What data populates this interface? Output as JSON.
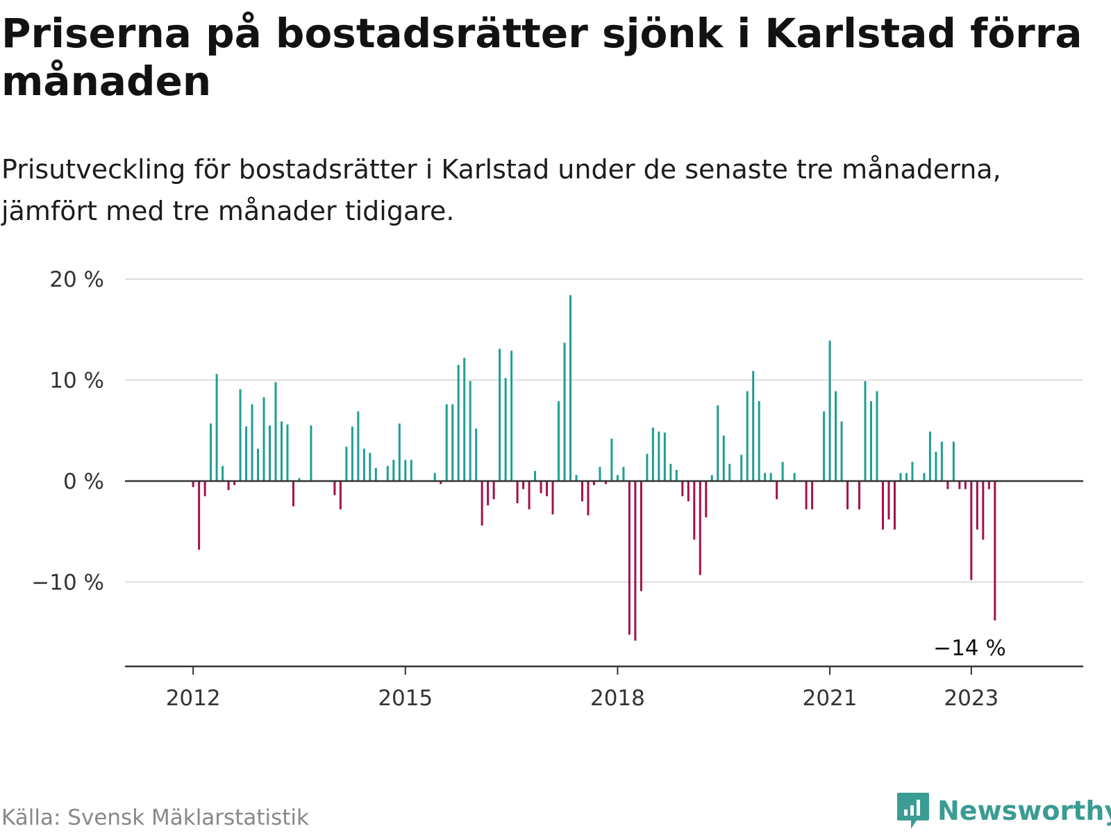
{
  "title": "Priserna på bostadsrätter sjönk i Karlstad förra månaden",
  "subtitle": "Prisutveckling för bostadsrätter i Karlstad under de senaste tre månaderna, jämfört med tre månader tidigare.",
  "source": "Källa: Svensk Mäklarstatistik",
  "brand": "Newsworthy",
  "colors": {
    "positive": "#1f9e94",
    "negative": "#a3114a",
    "brand": "#3a9c93",
    "grid": "#dddddd",
    "axis": "#333333"
  },
  "chart_data": {
    "type": "bar",
    "x_unit": "month",
    "x_start": "2011-08",
    "ylim": [
      -18,
      20
    ],
    "grid": true,
    "yticks": [
      {
        "value": 20,
        "label": "20 %"
      },
      {
        "value": 10,
        "label": "10 %"
      },
      {
        "value": 0,
        "label": "0 %"
      },
      {
        "value": -10,
        "label": "−10 %"
      }
    ],
    "xticks": [
      {
        "month": "2012-01",
        "label": "2012"
      },
      {
        "month": "2015-01",
        "label": "2015"
      },
      {
        "month": "2018-01",
        "label": "2018"
      },
      {
        "month": "2021-01",
        "label": "2021"
      },
      {
        "month": "2023-01",
        "label": "2023"
      }
    ],
    "values": [
      0,
      0,
      0,
      0,
      0,
      -0.6,
      -6.8,
      -1.5,
      5.7,
      10.6,
      1.5,
      -0.9,
      -0.4,
      9.1,
      5.4,
      7.6,
      3.2,
      8.3,
      5.5,
      9.8,
      5.9,
      5.6,
      -2.5,
      0.3,
      0,
      5.5,
      0,
      0,
      0,
      -1.4,
      -2.8,
      3.4,
      5.4,
      6.9,
      3.2,
      2.8,
      1.3,
      0,
      1.5,
      2.1,
      5.7,
      2.1,
      2.1,
      0,
      0,
      0,
      0.8,
      -0.3,
      7.6,
      7.6,
      11.5,
      12.2,
      9.9,
      5.2,
      -4.4,
      -2.4,
      -1.8,
      13.1,
      10.2,
      12.9,
      -2.2,
      -0.8,
      -2.8,
      1.0,
      -1.2,
      -1.5,
      -3.3,
      7.9,
      13.7,
      18.4,
      0.6,
      -2.0,
      -3.4,
      -0.4,
      1.4,
      -0.3,
      4.2,
      0.6,
      1.4,
      -15.2,
      -15.8,
      -10.9,
      2.7,
      5.3,
      4.9,
      4.8,
      1.7,
      1.1,
      -1.5,
      -2.0,
      -5.8,
      -9.3,
      -3.6,
      0.6,
      7.5,
      4.5,
      1.7,
      0,
      2.6,
      8.9,
      10.9,
      7.9,
      0.8,
      0.8,
      -1.8,
      1.9,
      0,
      0.8,
      0,
      -2.8,
      -2.8,
      0,
      6.9,
      13.9,
      8.9,
      5.9,
      -2.8,
      0,
      -2.8,
      9.9,
      7.9,
      8.9,
      -4.8,
      -3.8,
      -4.8,
      0.8,
      0.8,
      1.9,
      0,
      0.8,
      4.9,
      2.9,
      3.9,
      -0.8,
      3.9,
      -0.8,
      -0.8,
      -9.8,
      -4.8,
      -5.8,
      -0.8,
      -13.8
    ],
    "annotation": {
      "label": "−14 %",
      "month": "2023-01",
      "value": -13.8
    }
  }
}
